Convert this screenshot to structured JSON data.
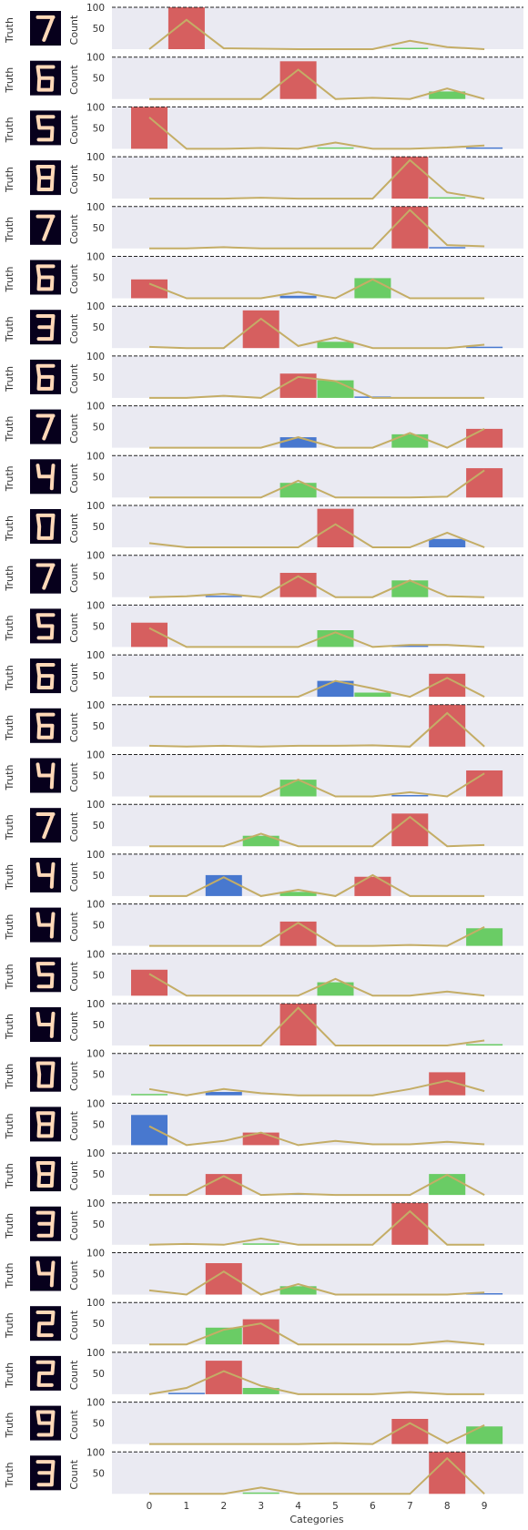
{
  "figure": {
    "row_label": "Truth",
    "y_label": "Count",
    "x_label": "Categories",
    "y_ticks": [
      "50",
      "100"
    ],
    "x_ticks": [
      "0",
      "1",
      "2",
      "3",
      "4",
      "5",
      "6",
      "7",
      "8",
      "9"
    ]
  },
  "colors": {
    "panel_bg": "#eaeaf2",
    "red": "#d65f5f",
    "green": "#6acc65",
    "blue": "#4878cf",
    "line": "#c4ad66",
    "digit_bg": "#07001c",
    "digit_stroke": "#ffd8b8",
    "reference_line": "#222222"
  },
  "chart_data": {
    "type": "bar",
    "ylim": [
      0,
      100
    ],
    "categories": [
      "0",
      "1",
      "2",
      "3",
      "4",
      "5",
      "6",
      "7",
      "8",
      "9"
    ],
    "reference_line_y": 100,
    "legend": "none",
    "series_notes": {
      "red": "true class bar",
      "green": "correct prediction bar",
      "blue": "incorrect prediction bar",
      "line": "predicted probability curve"
    },
    "rows": [
      {
        "digit": "7",
        "red": {
          "x": 1,
          "y": 100
        },
        "green": {
          "x": 7,
          "y": 2
        },
        "line": [
          0,
          70,
          2,
          1,
          0,
          0,
          0,
          20,
          5,
          0
        ]
      },
      {
        "digit": "6",
        "red": {
          "x": 4,
          "y": 90
        },
        "green": {
          "x": 8,
          "y": 18
        },
        "line": [
          0,
          0,
          0,
          0,
          70,
          0,
          3,
          0,
          25,
          0
        ]
      },
      {
        "digit": "5",
        "red": {
          "x": 0,
          "y": 100
        },
        "green": {
          "x": 5,
          "y": 2
        },
        "blue": {
          "x": 9,
          "y": 2
        },
        "line": [
          75,
          0,
          0,
          2,
          0,
          15,
          0,
          0,
          3,
          8
        ]
      },
      {
        "digit": "8",
        "red": {
          "x": 7,
          "y": 100
        },
        "green": {
          "x": 8,
          "y": 3
        },
        "line": [
          0,
          0,
          0,
          2,
          0,
          0,
          0,
          92,
          15,
          0
        ]
      },
      {
        "digit": "7",
        "red": {
          "x": 7,
          "y": 100
        },
        "blue": {
          "x": 8,
          "y": 2
        },
        "line": [
          0,
          0,
          3,
          0,
          0,
          0,
          0,
          92,
          8,
          5
        ]
      },
      {
        "digit": "6",
        "red": {
          "x": 0,
          "y": 45
        },
        "green": {
          "x": 6,
          "y": 48
        },
        "blue": {
          "x": 4,
          "y": 6
        },
        "line": [
          35,
          0,
          0,
          0,
          15,
          0,
          45,
          0,
          0,
          0
        ]
      },
      {
        "digit": "3",
        "red": {
          "x": 3,
          "y": 90
        },
        "green": {
          "x": 5,
          "y": 15
        },
        "blue": {
          "x": 9,
          "y": 2
        },
        "line": [
          3,
          0,
          0,
          70,
          5,
          25,
          0,
          0,
          0,
          8
        ]
      },
      {
        "digit": "6",
        "red": {
          "x": 4,
          "y": 58
        },
        "green": {
          "x": 5,
          "y": 42
        },
        "blue": {
          "x": 6,
          "y": 2
        },
        "line": [
          0,
          0,
          5,
          0,
          50,
          40,
          0,
          0,
          0,
          0
        ]
      },
      {
        "digit": "7",
        "red": {
          "x": 9,
          "y": 45
        },
        "green": {
          "x": 7,
          "y": 32
        },
        "blue": {
          "x": 4,
          "y": 25
        },
        "line": [
          0,
          0,
          0,
          0,
          25,
          0,
          0,
          35,
          0,
          45
        ]
      },
      {
        "digit": "4",
        "red": {
          "x": 9,
          "y": 70
        },
        "green": {
          "x": 4,
          "y": 35
        },
        "line": [
          0,
          0,
          0,
          0,
          40,
          0,
          0,
          0,
          2,
          65
        ]
      },
      {
        "digit": "0",
        "red": {
          "x": 5,
          "y": 92
        },
        "blue": {
          "x": 8,
          "y": 20
        },
        "line": [
          10,
          0,
          0,
          0,
          0,
          55,
          0,
          0,
          35,
          0
        ]
      },
      {
        "digit": "7",
        "red": {
          "x": 4,
          "y": 58
        },
        "green": {
          "x": 7,
          "y": 40
        },
        "blue": {
          "x": 2,
          "y": 2
        },
        "line": [
          0,
          2,
          8,
          0,
          50,
          0,
          0,
          40,
          2,
          0
        ]
      },
      {
        "digit": "5",
        "red": {
          "x": 0,
          "y": 58
        },
        "green": {
          "x": 5,
          "y": 40
        },
        "blue": {
          "x": 7,
          "y": 2
        },
        "line": [
          45,
          0,
          0,
          0,
          0,
          35,
          0,
          5,
          5,
          0
        ]
      },
      {
        "digit": "6",
        "red": {
          "x": 8,
          "y": 55
        },
        "green": {
          "x": 6,
          "y": 10
        },
        "blue": {
          "x": 5,
          "y": 38
        },
        "line": [
          0,
          0,
          0,
          0,
          0,
          38,
          20,
          0,
          45,
          0
        ]
      },
      {
        "digit": "6",
        "red": {
          "x": 8,
          "y": 100
        },
        "line": [
          2,
          0,
          2,
          0,
          2,
          2,
          3,
          0,
          80,
          0
        ]
      },
      {
        "digit": "4",
        "red": {
          "x": 9,
          "y": 62
        },
        "green": {
          "x": 4,
          "y": 40
        },
        "blue": {
          "x": 7,
          "y": 2
        },
        "line": [
          0,
          0,
          0,
          0,
          40,
          0,
          0,
          10,
          0,
          55
        ]
      },
      {
        "digit": "7",
        "red": {
          "x": 7,
          "y": 78
        },
        "green": {
          "x": 3,
          "y": 25
        },
        "line": [
          0,
          0,
          0,
          30,
          0,
          0,
          0,
          70,
          0,
          3
        ]
      },
      {
        "digit": "4",
        "red": {
          "x": 6,
          "y": 46
        },
        "green": {
          "x": 4,
          "y": 10
        },
        "blue": {
          "x": 2,
          "y": 50
        },
        "line": [
          0,
          0,
          45,
          0,
          15,
          0,
          50,
          0,
          0,
          0
        ]
      },
      {
        "digit": "4",
        "red": {
          "x": 4,
          "y": 58
        },
        "green": {
          "x": 9,
          "y": 42
        },
        "line": [
          0,
          0,
          0,
          0,
          55,
          0,
          0,
          2,
          0,
          45
        ]
      },
      {
        "digit": "5",
        "red": {
          "x": 0,
          "y": 62
        },
        "green": {
          "x": 5,
          "y": 32
        },
        "line": [
          52,
          0,
          0,
          0,
          0,
          40,
          0,
          0,
          10,
          0
        ]
      },
      {
        "digit": "4",
        "red": {
          "x": 4,
          "y": 100
        },
        "green": {
          "x": 9,
          "y": 3
        },
        "line": [
          0,
          0,
          0,
          0,
          90,
          0,
          0,
          0,
          0,
          12
        ]
      },
      {
        "digit": "0",
        "red": {
          "x": 8,
          "y": 55
        },
        "green": {
          "x": 0,
          "y": 3
        },
        "blue": {
          "x": 2,
          "y": 8
        },
        "line": [
          15,
          0,
          15,
          5,
          0,
          0,
          0,
          15,
          35,
          10
        ]
      },
      {
        "digit": "8",
        "red": {
          "x": 3,
          "y": 30
        },
        "blue": {
          "x": 0,
          "y": 72
        },
        "line": [
          45,
          0,
          10,
          30,
          0,
          10,
          2,
          2,
          8,
          2
        ]
      },
      {
        "digit": "8",
        "red": {
          "x": 2,
          "y": 50
        },
        "green": {
          "x": 8,
          "y": 50
        },
        "blue": {
          "x": 4,
          "y": 3
        },
        "line": [
          0,
          0,
          45,
          0,
          3,
          0,
          0,
          0,
          48,
          0
        ]
      },
      {
        "digit": "3",
        "red": {
          "x": 7,
          "y": 100
        },
        "green": {
          "x": 3,
          "y": 2
        },
        "line": [
          0,
          2,
          0,
          15,
          0,
          0,
          0,
          80,
          0,
          0
        ]
      },
      {
        "digit": "4",
        "red": {
          "x": 2,
          "y": 75
        },
        "green": {
          "x": 4,
          "y": 20
        },
        "blue": {
          "x": 9,
          "y": 3
        },
        "line": [
          10,
          0,
          55,
          0,
          25,
          0,
          0,
          0,
          0,
          5
        ]
      },
      {
        "digit": "2",
        "red": {
          "x": 3,
          "y": 60
        },
        "green": {
          "x": 2,
          "y": 40
        },
        "line": [
          0,
          0,
          35,
          50,
          0,
          0,
          0,
          0,
          8,
          0
        ]
      },
      {
        "digit": "2",
        "red": {
          "x": 2,
          "y": 80
        },
        "green": {
          "x": 3,
          "y": 15
        },
        "blue": {
          "x": 1,
          "y": 2
        },
        "line": [
          0,
          15,
          55,
          20,
          0,
          0,
          0,
          5,
          0,
          0
        ]
      },
      {
        "digit": "9",
        "red": {
          "x": 7,
          "y": 60
        },
        "green": {
          "x": 9,
          "y": 42
        },
        "line": [
          0,
          0,
          0,
          0,
          0,
          2,
          0,
          50,
          2,
          45
        ]
      },
      {
        "digit": "3",
        "red": {
          "x": 8,
          "y": 100
        },
        "green": {
          "x": 3,
          "y": 3
        },
        "line": [
          0,
          0,
          0,
          15,
          0,
          0,
          0,
          0,
          85,
          0
        ]
      }
    ]
  }
}
